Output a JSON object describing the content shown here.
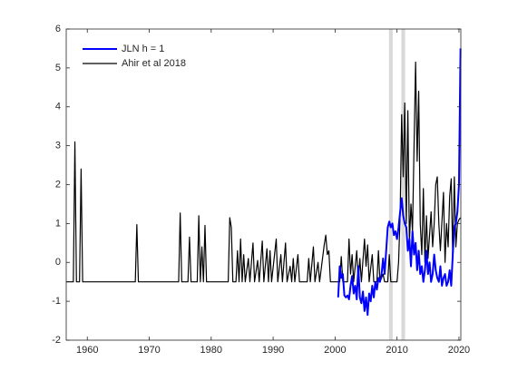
{
  "chart_data": {
    "type": "line",
    "xlim": [
      1956.6,
      2020.3
    ],
    "xticks": [
      1960,
      1970,
      1980,
      1990,
      2000,
      2010,
      2020
    ],
    "ylim": [
      -2,
      6
    ],
    "yticks": [
      -2,
      -1,
      0,
      1,
      2,
      3,
      4,
      5,
      6
    ],
    "legend": "northwest",
    "grid": false,
    "shaded_regions": [
      [
        2008.7,
        2009.3
      ],
      [
        2010.7,
        2011.3
      ]
    ],
    "shaded_color": "#d9d9d9",
    "series": [
      {
        "name": "JLN h = 1",
        "color": "#0000ff",
        "x": [
          2000.5,
          2000.75,
          2001,
          2001.25,
          2001.5,
          2001.75,
          2002,
          2002.25,
          2002.5,
          2002.75,
          2003,
          2003.25,
          2003.5,
          2003.75,
          2004,
          2004.25,
          2004.5,
          2004.75,
          2005,
          2005.25,
          2005.5,
          2005.75,
          2006,
          2006.25,
          2006.5,
          2006.75,
          2007,
          2007.25,
          2007.5,
          2007.75,
          2008,
          2008.25,
          2008.5,
          2008.75,
          2009,
          2009.25,
          2009.5,
          2009.75,
          2010,
          2010.25,
          2010.5,
          2010.75,
          2011,
          2011.25,
          2011.5,
          2011.75,
          2012,
          2012.25,
          2012.5,
          2012.75,
          2013,
          2013.25,
          2013.5,
          2013.75,
          2014,
          2014.25,
          2014.5,
          2014.75,
          2015,
          2015.25,
          2015.5,
          2015.75,
          2016,
          2016.25,
          2016.5,
          2016.75,
          2017,
          2017.25,
          2017.5,
          2017.75,
          2018,
          2018.25,
          2018.5,
          2018.75,
          2019,
          2019.25,
          2019.5,
          2019.75,
          2020,
          2020.25
        ],
        "values": [
          -0.9,
          -0.1,
          -0.4,
          -0.3,
          -0.85,
          -0.9,
          -0.85,
          -0.95,
          -0.6,
          -0.35,
          -0.8,
          -0.6,
          -0.95,
          -0.1,
          -0.9,
          -1.05,
          -0.75,
          -1.25,
          -0.9,
          -1.35,
          -0.8,
          -1.0,
          -0.6,
          -0.9,
          -0.5,
          -0.7,
          -0.4,
          -0.5,
          -0.3,
          0.1,
          -0.3,
          0.3,
          0.9,
          1.05,
          0.9,
          1.0,
          0.7,
          0.8,
          0.6,
          0.9,
          1.3,
          1.65,
          1.2,
          1.0,
          0.9,
          0.3,
          0.6,
          -0.1,
          0.8,
          0.2,
          0.5,
          -0.2,
          0.3,
          -0.3,
          -0.1,
          -0.5,
          -0.2,
          0.3,
          -0.3,
          0.0,
          -0.5,
          -0.3,
          0.2,
          -0.2,
          -0.4,
          -0.5,
          -0.1,
          -0.6,
          -0.4,
          -0.3,
          -0.6,
          -0.5,
          -0.2,
          -0.6,
          0.2,
          0.9,
          1.0,
          1.3,
          2.0,
          5.5
        ]
      },
      {
        "name": "Ahir et al 2018",
        "color": "#000000",
        "x": [
          1956.6,
          1957.75,
          1958,
          1958.25,
          1958.75,
          1959,
          1959.25,
          1967.75,
          1968,
          1968.25,
          1974.75,
          1975,
          1975.25,
          1976.25,
          1976.5,
          1976.75,
          1977.75,
          1978,
          1978.25,
          1978.5,
          1978.75,
          1979,
          1979.25,
          1982.75,
          1983,
          1983.25,
          1983.5,
          1984,
          1984.25,
          1984.5,
          1984.75,
          1985,
          1985.25,
          1985.5,
          1986,
          1986.25,
          1986.75,
          1987,
          1987.5,
          1987.75,
          1988.25,
          1988.5,
          1989,
          1989.25,
          1989.5,
          1989.75,
          1990.5,
          1990.75,
          1991.25,
          1991.5,
          1992,
          1992.25,
          1992.75,
          1993,
          1993.25,
          1993.5,
          1994,
          1994.25,
          1995.5,
          1995.75,
          1996,
          1996.5,
          1996.75,
          1997.25,
          1997.5,
          1998.25,
          1998.5,
          1998.75,
          1999,
          1999.25,
          2000.75,
          2001,
          2001.25,
          2002,
          2002.25,
          2002.5,
          2002.75,
          2003,
          2003.5,
          2003.75,
          2004,
          2004.25,
          2004.75,
          2005,
          2005.25,
          2005.5,
          2006,
          2006.25,
          2006.75,
          2007,
          2007.25,
          2007.75,
          2008,
          2008.5,
          2008.75,
          2009,
          2010,
          2010.25,
          2010.5,
          2010.75,
          2011,
          2011.25,
          2011.5,
          2011.75,
          2012,
          2012.25,
          2012.5,
          2012.75,
          2013,
          2013.25,
          2013.5,
          2013.75,
          2014,
          2014.25,
          2014.5,
          2014.75,
          2015,
          2015.5,
          2015.75,
          2016,
          2016.25,
          2016.5,
          2016.75,
          2017,
          2017.5,
          2017.75,
          2018,
          2018.25,
          2018.5,
          2018.75,
          2019,
          2019.25,
          2019.5,
          2019.75,
          2020,
          2020.25
        ],
        "values": [
          -0.5,
          -0.5,
          3.1,
          -0.5,
          -0.5,
          2.4,
          -0.5,
          -0.5,
          0.97,
          -0.5,
          -0.5,
          1.27,
          -0.5,
          -0.5,
          0.65,
          -0.5,
          -0.5,
          1.2,
          -0.5,
          0.4,
          -0.5,
          0.95,
          -0.5,
          -0.5,
          1.15,
          0.9,
          -0.5,
          -0.5,
          0.3,
          -0.5,
          0.6,
          -0.5,
          0.2,
          -0.5,
          0.1,
          -0.5,
          0.5,
          -0.5,
          0.05,
          -0.5,
          0.55,
          -0.5,
          0.35,
          -0.5,
          0.3,
          -0.5,
          0.6,
          -0.5,
          0.2,
          -0.5,
          0.5,
          -0.5,
          -0.1,
          -0.5,
          0.1,
          -0.5,
          0.2,
          -0.5,
          -0.5,
          0.1,
          -0.5,
          0.4,
          -0.5,
          0.0,
          -0.5,
          0.45,
          0.7,
          0.2,
          0.3,
          -0.5,
          -0.5,
          0.15,
          -0.5,
          -0.5,
          0.6,
          -0.3,
          0.2,
          -0.5,
          0.3,
          -0.5,
          0.1,
          -0.5,
          0.6,
          -0.1,
          0.45,
          -0.5,
          0.2,
          -0.5,
          -0.5,
          0.3,
          -0.5,
          -0.3,
          -0.5,
          -0.5,
          0.2,
          -0.5,
          -0.5,
          0.0,
          1.2,
          3.8,
          2.2,
          4.1,
          1.0,
          3.9,
          0.5,
          1.5,
          0.8,
          3.0,
          5.15,
          2.6,
          4.4,
          1.0,
          0.2,
          1.9,
          0.0,
          1.2,
          0.1,
          1.3,
          0.4,
          1.0,
          2.0,
          2.2,
          1.0,
          0.3,
          1.8,
          0.0,
          1.0,
          0.4,
          1.7,
          2.15,
          0.1,
          2.2,
          0.4,
          1.0,
          1.1,
          1.15
        ]
      }
    ]
  }
}
